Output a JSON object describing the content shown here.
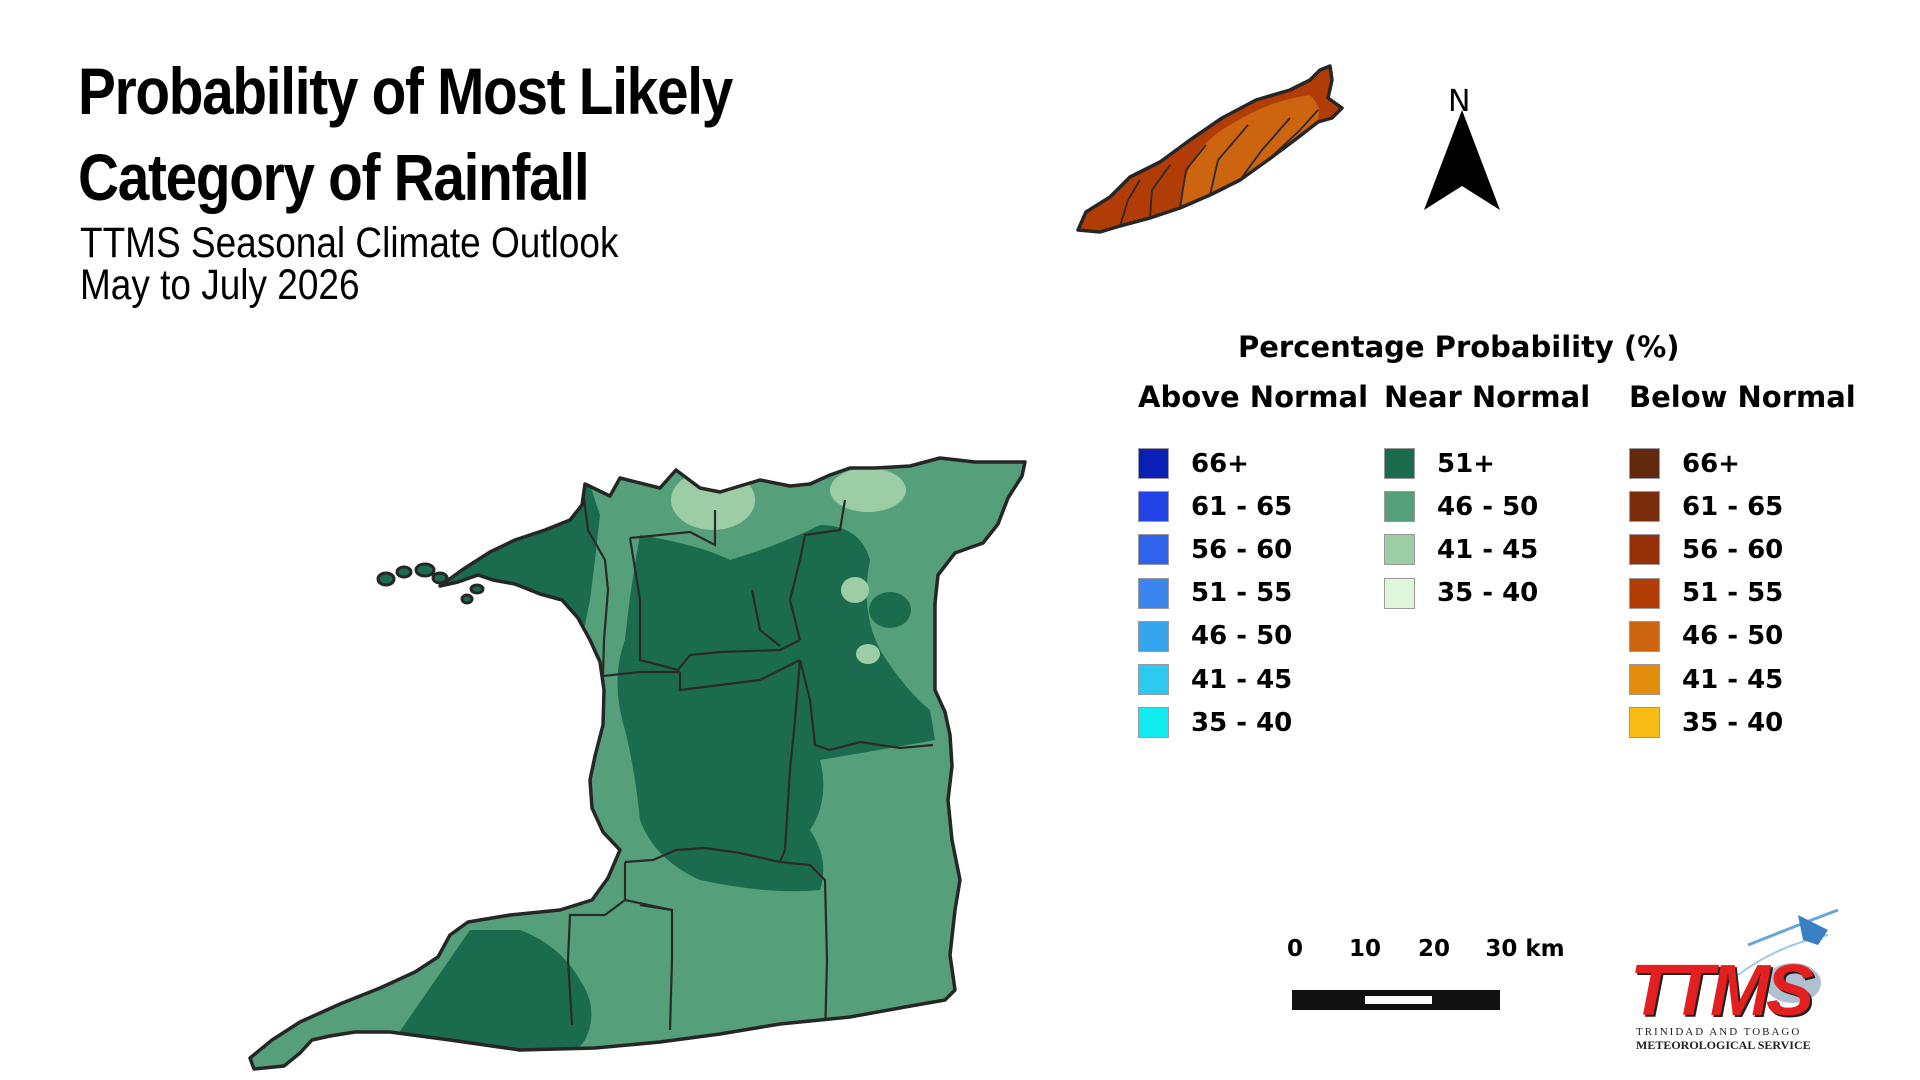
{
  "title": "Probability of Most Likely Category of Rainfall",
  "subtitle_line1": "TTMS Seasonal Climate Outlook",
  "subtitle_line2": "May to July 2026",
  "north_label": "N",
  "legend": {
    "title": "Percentage Probability (%)",
    "above_normal": {
      "heading": "Above Normal",
      "items": [
        {
          "label": "66+",
          "color": "#0a1fb4"
        },
        {
          "label": "61 - 65",
          "color": "#2142e6"
        },
        {
          "label": "56 - 60",
          "color": "#2e63ea"
        },
        {
          "label": "51 - 55",
          "color": "#3a86ee"
        },
        {
          "label": "46 - 50",
          "color": "#35a6ee"
        },
        {
          "label": "41 - 45",
          "color": "#2ccaf0"
        },
        {
          "label": "35 - 40",
          "color": "#12ecf0"
        }
      ]
    },
    "near_normal": {
      "heading": "Near Normal",
      "items": [
        {
          "label": "51+",
          "color": "#1b6b4e"
        },
        {
          "label": "46 - 50",
          "color": "#55a07a"
        },
        {
          "label": "41 - 45",
          "color": "#9ccda4"
        },
        {
          "label": "35 - 40",
          "color": "#e0f6d8"
        }
      ]
    },
    "below_normal": {
      "heading": "Below Normal",
      "items": [
        {
          "label": "66+",
          "color": "#62290e"
        },
        {
          "label": "61 - 65",
          "color": "#7b2e0c"
        },
        {
          "label": "56 - 60",
          "color": "#953008"
        },
        {
          "label": "51 - 55",
          "color": "#b23c06"
        },
        {
          "label": "46 - 50",
          "color": "#cd6410"
        },
        {
          "label": "41 - 45",
          "color": "#e28e0c"
        },
        {
          "label": "35 - 40",
          "color": "#f8bc12"
        }
      ]
    }
  },
  "scale_bar": {
    "labels": [
      "0",
      "10",
      "20",
      "30 km"
    ]
  },
  "logo": {
    "name": "TTMS",
    "line1": "TRINIDAD AND TOBAGO",
    "line2": "METEOROLOGICAL SERVICE"
  },
  "map_colors": {
    "trinidad_dark": "#1b6b4e",
    "trinidad_mid": "#55a07a",
    "trinidad_light": "#9ccda4",
    "tobago_main": "#cd6410",
    "tobago_edge": "#b23c06"
  }
}
